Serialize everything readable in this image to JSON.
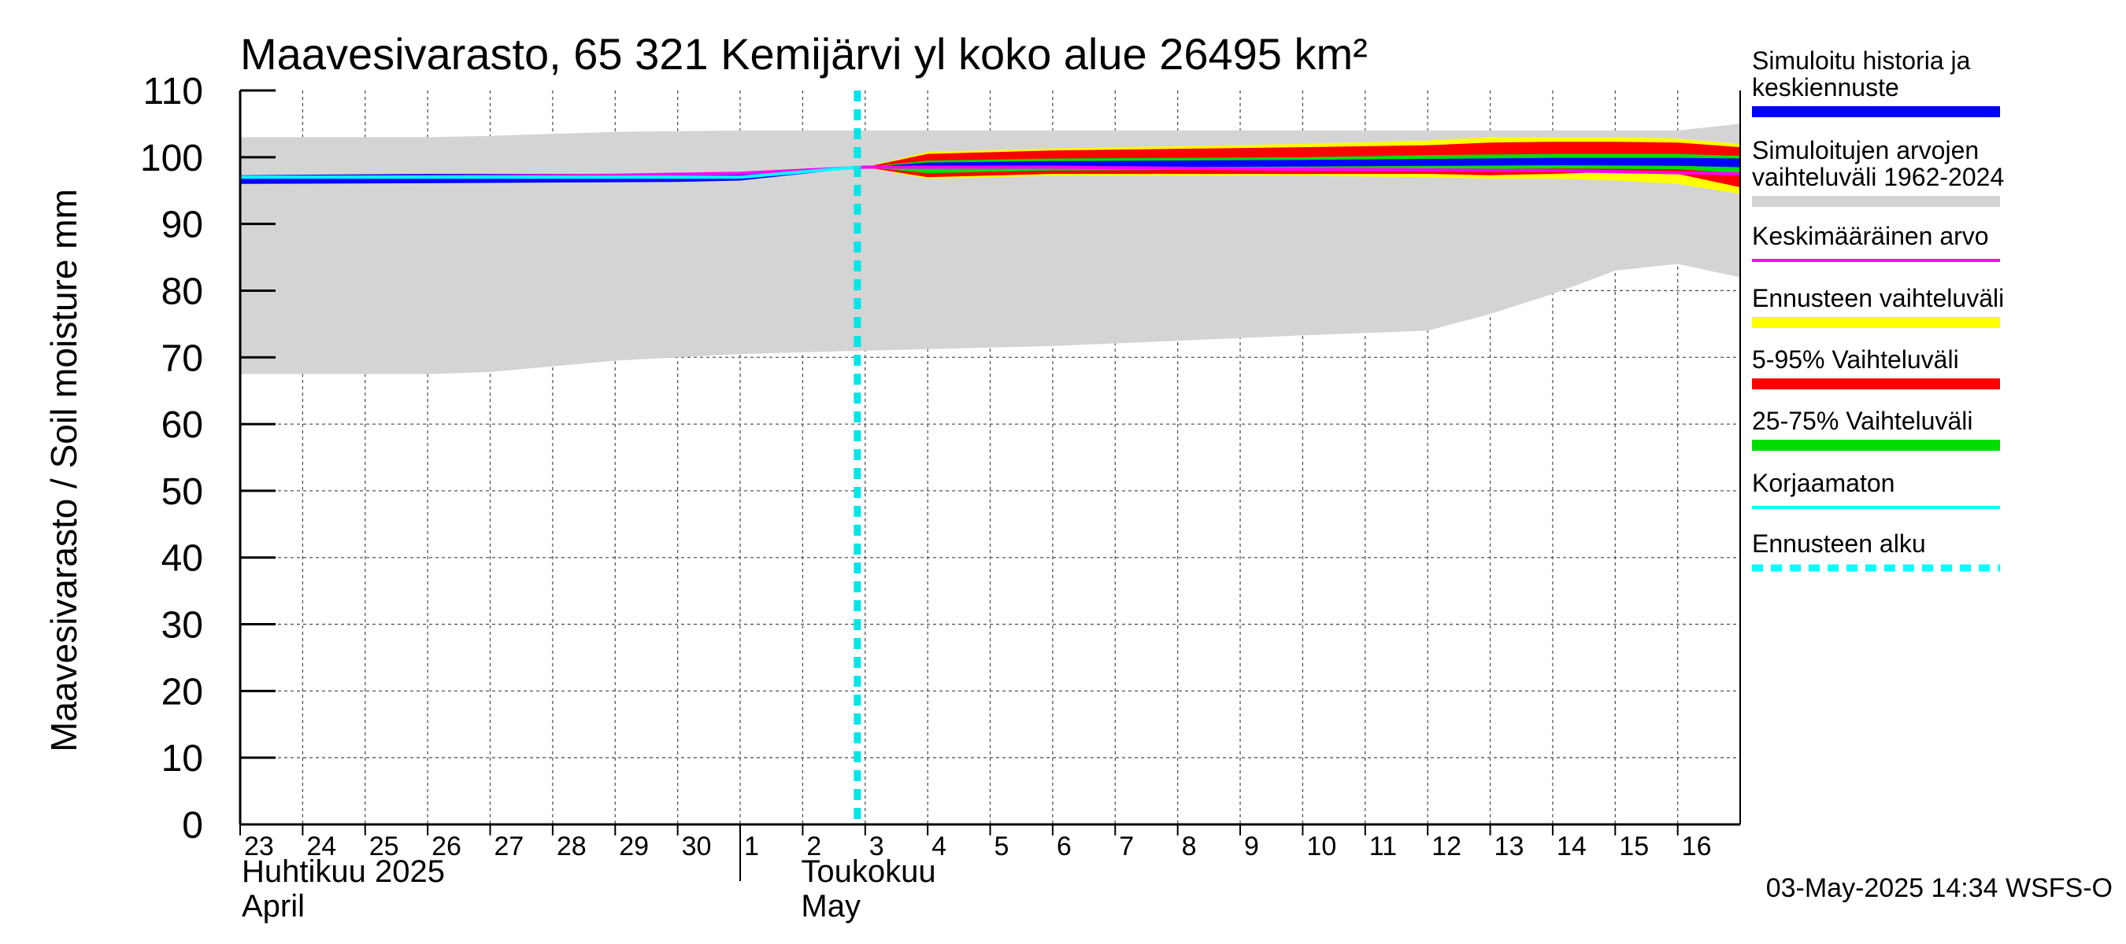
{
  "chart_data": {
    "type": "area",
    "title": "Maavesivarasto, 65 321 Kemijärvi yl koko alue 26495 km²",
    "ylabel": "Maavesivarasto / Soil moisture   mm",
    "ylim": [
      0,
      110
    ],
    "y_ticks": [
      "0",
      "10",
      "20",
      "30",
      "40",
      "50",
      "60",
      "70",
      "80",
      "90",
      "100",
      "110"
    ],
    "x_dates": [
      "2025-04-23",
      "2025-04-24",
      "2025-04-25",
      "2025-04-26",
      "2025-04-27",
      "2025-04-28",
      "2025-04-29",
      "2025-04-30",
      "2025-05-01",
      "2025-05-02",
      "2025-05-03",
      "2025-05-04",
      "2025-05-05",
      "2025-05-06",
      "2025-05-07",
      "2025-05-08",
      "2025-05-09",
      "2025-05-10",
      "2025-05-11",
      "2025-05-12",
      "2025-05-13",
      "2025-05-14",
      "2025-05-15",
      "2025-05-16"
    ],
    "x_tick_labels": [
      "23",
      "24",
      "25",
      "26",
      "27",
      "28",
      "29",
      "30",
      "1",
      "2",
      "3",
      "4",
      "5",
      "6",
      "7",
      "8",
      "9",
      "10",
      "11",
      "12",
      "13",
      "14",
      "15",
      "16"
    ],
    "x_start": "2025-04-23",
    "x_end": "2025-05-16T23:59",
    "month_labels": [
      {
        "fi": "Huhtikuu  2025",
        "en": "April",
        "date": "2025-04-23"
      },
      {
        "fi": "Toukokuu",
        "en": "May",
        "date": "2025-05-02"
      }
    ],
    "month_divider_date": "2025-05-01",
    "forecast_start": "2025-05-02T21:00",
    "grid": true,
    "legend_position": "right",
    "series": [
      {
        "name": "Simuloitujen arvojen vaihteluväli 1962-2024",
        "kind": "band",
        "color": "#d4d4d4",
        "x": [
          "2025-04-23",
          "2025-04-26",
          "2025-04-27",
          "2025-04-29",
          "2025-05-01",
          "2025-05-03",
          "2025-05-06",
          "2025-05-10",
          "2025-05-12",
          "2025-05-13",
          "2025-05-14",
          "2025-05-15",
          "2025-05-16",
          "2025-05-16T23:59"
        ],
        "upper": [
          103,
          103,
          103.2,
          103.8,
          104,
          104,
          104,
          104,
          104,
          104,
          104,
          104,
          104,
          105
        ],
        "lower": [
          67.5,
          67.5,
          67.8,
          69.5,
          70.5,
          71,
          71.7,
          73.3,
          74,
          76.5,
          79.5,
          83,
          84,
          82
        ]
      },
      {
        "name": "Ennusteen vaihteluväli",
        "kind": "band",
        "color": "#ffff00",
        "x": [
          "2025-05-03",
          "2025-05-04",
          "2025-05-06",
          "2025-05-10",
          "2025-05-12",
          "2025-05-13",
          "2025-05-14",
          "2025-05-15",
          "2025-05-16",
          "2025-05-16T23:59"
        ],
        "upper": [
          98.5,
          100.8,
          101.3,
          102,
          102.5,
          103,
          103,
          103,
          102.8,
          102
        ],
        "lower": [
          98.5,
          96.8,
          97.2,
          97.2,
          97,
          96.8,
          96.8,
          96.5,
          96,
          94.5
        ]
      },
      {
        "name": "5-95% Vaihteluväli",
        "kind": "band",
        "color": "#ff0000",
        "x": [
          "2025-05-03",
          "2025-05-04",
          "2025-05-06",
          "2025-05-10",
          "2025-05-12",
          "2025-05-13",
          "2025-05-14",
          "2025-05-15",
          "2025-05-16",
          "2025-05-16T23:59"
        ],
        "upper": [
          98.5,
          100.5,
          101,
          101.5,
          101.8,
          102.2,
          102.3,
          102.3,
          102.2,
          101.5
        ],
        "lower": [
          98.5,
          97,
          97.5,
          97.5,
          97.5,
          97.3,
          97.5,
          97.8,
          97.5,
          95.5
        ]
      },
      {
        "name": "25-75% Vaihteluväli",
        "kind": "band",
        "color": "#00dd00",
        "x": [
          "2025-05-03",
          "2025-05-04",
          "2025-05-06",
          "2025-05-10",
          "2025-05-12",
          "2025-05-14",
          "2025-05-16",
          "2025-05-16T23:59"
        ],
        "upper": [
          98.5,
          99.5,
          99.8,
          100,
          100.3,
          100.5,
          100.5,
          100.2
        ],
        "lower": [
          98.5,
          97.6,
          98,
          98.2,
          98.2,
          98.3,
          98.2,
          97.6
        ]
      },
      {
        "name": "Simuloitu historia ja keskiennuste",
        "kind": "band",
        "color": "#0000ff",
        "x": [
          "2025-04-23",
          "2025-04-26",
          "2025-04-30",
          "2025-05-01",
          "2025-05-03",
          "2025-05-04",
          "2025-05-06",
          "2025-05-10",
          "2025-05-14",
          "2025-05-16",
          "2025-05-16T23:59"
        ],
        "upper": [
          97.3,
          97.5,
          97.5,
          97.5,
          98.5,
          99.2,
          99.4,
          99.6,
          99.9,
          99.9,
          99.8
        ],
        "lower": [
          96,
          96.1,
          96.3,
          96.5,
          98.5,
          98.3,
          98.5,
          98.6,
          98.8,
          98.7,
          98.5
        ]
      },
      {
        "name": "Keskimääräinen arvo",
        "kind": "line",
        "color": "#ff00ff",
        "x": [
          "2025-04-23",
          "2025-04-26",
          "2025-04-29",
          "2025-05-01",
          "2025-05-03",
          "2025-05-06",
          "2025-05-10",
          "2025-05-14",
          "2025-05-16T23:59"
        ],
        "y": [
          97,
          97.1,
          97.3,
          97.6,
          98.5,
          98.5,
          98.2,
          98,
          97.5
        ]
      },
      {
        "name": "Korjaamaton",
        "kind": "line",
        "color": "#00ffff",
        "x": [
          "2025-04-23",
          "2025-04-26",
          "2025-04-30",
          "2025-05-01",
          "2025-05-02T21:00"
        ],
        "y": [
          97,
          97,
          97,
          97,
          98.5
        ]
      },
      {
        "name": "Ennusteen alku",
        "kind": "vline",
        "color": "#00e5e5",
        "x": "2025-05-02T21:00"
      }
    ],
    "legend": [
      {
        "label": "Simuloitu historia ja\nkeskiennuste",
        "color": "#0000ff",
        "style": "solid"
      },
      {
        "label": "Simuloitujen arvojen\nvaihteluväli 1962-2024",
        "color": "#d4d4d4",
        "style": "solid"
      },
      {
        "label": "Keskimääräinen arvo",
        "color": "#ff00ff",
        "style": "thin"
      },
      {
        "label": "Ennusteen vaihteluväli",
        "color": "#ffff00",
        "style": "solid"
      },
      {
        "label": "5-95% Vaihteluväli",
        "color": "#ff0000",
        "style": "solid"
      },
      {
        "label": "25-75% Vaihteluväli",
        "color": "#00dd00",
        "style": "solid"
      },
      {
        "label": "Korjaamaton",
        "color": "#00ffff",
        "style": "thin"
      },
      {
        "label": "Ennusteen alku",
        "color": "#00ffff",
        "style": "dashed"
      }
    ],
    "timestamp": "03-May-2025 14:34 WSFS-O"
  }
}
